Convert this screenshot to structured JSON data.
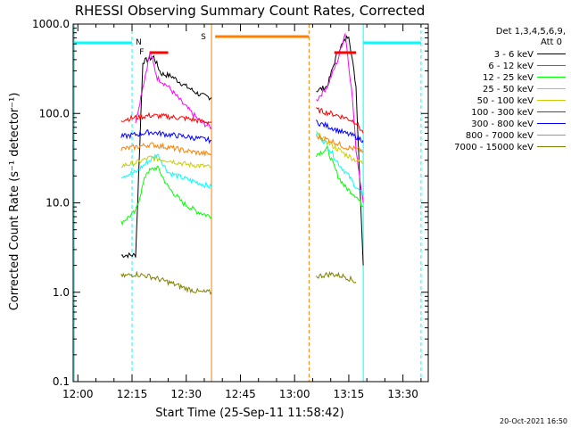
{
  "chart_data": {
    "type": "line",
    "title": "RHESSI Observing Summary Count Rates, Corrected",
    "xlabel": "Start Time (25-Sep-11 11:58:42)",
    "ylabel": "Corrected Count Rate (s⁻¹ detector⁻¹)",
    "y_scale": "log",
    "xlim": [
      "11:58:42",
      "13:37:00"
    ],
    "ylim": [
      0.1,
      1000
    ],
    "x_ticks": [
      "12:00",
      "12:15",
      "12:30",
      "12:45",
      "13:00",
      "13:15",
      "13:30"
    ],
    "y_ticks": [
      "0.1",
      "1.0",
      "10.0",
      "100.0",
      "1000.0"
    ],
    "legend": {
      "position": "top-right",
      "header_line1": "Det 1,3,4,5,6,9,",
      "header_line2": "Att 0"
    },
    "series": [
      {
        "name": "3 - 6 keV",
        "color": "#000000",
        "points": [
          [
            "12:12",
            2.6
          ],
          [
            "12:16",
            2.6
          ],
          [
            "12:18",
            380
          ],
          [
            "12:21",
            430
          ],
          [
            "12:23",
            280
          ],
          [
            "12:26",
            260
          ],
          [
            "12:30",
            200
          ],
          [
            "12:34",
            160
          ],
          [
            "12:37",
            150
          ],
          [
            "13:06",
            180
          ],
          [
            "13:09",
            200
          ],
          [
            "13:12",
            500
          ],
          [
            "13:15",
            760
          ],
          [
            "13:17",
            200
          ],
          [
            "13:19",
            2.0
          ]
        ]
      },
      {
        "name": "6 - 12 keV",
        "color": "#ff00ff",
        "points": [
          [
            "12:16",
            80
          ],
          [
            "12:18",
            200
          ],
          [
            "12:20",
            480
          ],
          [
            "12:22",
            250
          ],
          [
            "12:25",
            200
          ],
          [
            "12:29",
            130
          ],
          [
            "12:34",
            80
          ],
          [
            "12:37",
            70
          ],
          [
            "13:06",
            140
          ],
          [
            "13:09",
            200
          ],
          [
            "13:12",
            400
          ],
          [
            "13:14",
            800
          ],
          [
            "13:16",
            150
          ],
          [
            "13:17",
            40
          ],
          [
            "13:19",
            10
          ]
        ]
      },
      {
        "name": "12 - 25 keV",
        "color": "#00ff00",
        "points": [
          [
            "12:12",
            6
          ],
          [
            "12:16",
            8
          ],
          [
            "12:19",
            22
          ],
          [
            "12:22",
            25
          ],
          [
            "12:25",
            15
          ],
          [
            "12:29",
            10
          ],
          [
            "12:33",
            8
          ],
          [
            "12:37",
            7
          ],
          [
            "13:06",
            35
          ],
          [
            "13:09",
            40
          ],
          [
            "13:12",
            20
          ],
          [
            "13:14",
            15
          ],
          [
            "13:17",
            12
          ],
          [
            "13:19",
            9
          ]
        ]
      },
      {
        "name": "25 - 50 keV",
        "color": "#00ffff",
        "points": [
          [
            "12:12",
            20
          ],
          [
            "12:16",
            22
          ],
          [
            "12:19",
            28
          ],
          [
            "12:22",
            35
          ],
          [
            "12:25",
            22
          ],
          [
            "12:29",
            19
          ],
          [
            "12:33",
            17
          ],
          [
            "12:37",
            15
          ],
          [
            "13:06",
            60
          ],
          [
            "13:09",
            45
          ],
          [
            "13:12",
            28
          ],
          [
            "13:15",
            20
          ],
          [
            "13:17",
            15
          ],
          [
            "13:19",
            12
          ]
        ]
      },
      {
        "name": "50 - 100 keV",
        "color": "#cccc00",
        "points": [
          [
            "12:12",
            26
          ],
          [
            "12:16",
            28
          ],
          [
            "12:20",
            32
          ],
          [
            "12:25",
            30
          ],
          [
            "12:30",
            27
          ],
          [
            "12:34",
            26
          ],
          [
            "12:37",
            25
          ],
          [
            "13:06",
            60
          ],
          [
            "13:10",
            45
          ],
          [
            "13:14",
            35
          ],
          [
            "13:17",
            30
          ],
          [
            "13:19",
            28
          ]
        ]
      },
      {
        "name": "100 - 300 keV",
        "color": "#ff0000",
        "points": [
          [
            "12:12",
            85
          ],
          [
            "12:16",
            90
          ],
          [
            "12:20",
            95
          ],
          [
            "12:25",
            92
          ],
          [
            "12:30",
            88
          ],
          [
            "12:34",
            82
          ],
          [
            "12:37",
            80
          ],
          [
            "13:06",
            110
          ],
          [
            "13:10",
            100
          ],
          [
            "13:14",
            90
          ],
          [
            "13:17",
            80
          ],
          [
            "13:19",
            60
          ]
        ]
      },
      {
        "name": "300 - 800 keV",
        "color": "#0000ff",
        "points": [
          [
            "12:12",
            55
          ],
          [
            "12:16",
            58
          ],
          [
            "12:20",
            62
          ],
          [
            "12:25",
            58
          ],
          [
            "12:30",
            55
          ],
          [
            "12:34",
            52
          ],
          [
            "12:37",
            50
          ],
          [
            "13:06",
            80
          ],
          [
            "13:10",
            70
          ],
          [
            "13:14",
            60
          ],
          [
            "13:17",
            55
          ],
          [
            "13:19",
            50
          ]
        ]
      },
      {
        "name": "800 - 7000 keV",
        "color": "#ff8000",
        "points": [
          [
            "12:12",
            40
          ],
          [
            "12:16",
            42
          ],
          [
            "12:20",
            45
          ],
          [
            "12:25",
            42
          ],
          [
            "12:30",
            38
          ],
          [
            "12:34",
            36
          ],
          [
            "12:37",
            35
          ],
          [
            "13:06",
            55
          ],
          [
            "13:10",
            50
          ],
          [
            "13:14",
            42
          ],
          [
            "13:17",
            40
          ],
          [
            "13:19",
            38
          ]
        ]
      },
      {
        "name": "7000 - 15000 keV",
        "color": "#808000",
        "points": [
          [
            "12:12",
            1.5
          ],
          [
            "12:16",
            1.6
          ],
          [
            "12:20",
            1.5
          ],
          [
            "12:25",
            1.3
          ],
          [
            "12:30",
            1.1
          ],
          [
            "12:34",
            1.0
          ],
          [
            "12:37",
            1.0
          ],
          [
            "13:06",
            1.5
          ],
          [
            "13:10",
            1.6
          ],
          [
            "13:14",
            1.5
          ],
          [
            "13:17",
            1.3
          ]
        ]
      }
    ],
    "annotations": {
      "night_bars": [
        [
          "11:59",
          "12:15"
        ],
        [
          "13:19",
          "13:35"
        ]
      ],
      "night_bar_color": "#00ffff",
      "night_label": "N",
      "saa_bar": [
        "12:38",
        "13:04"
      ],
      "saa_bar_color": "#ff8000",
      "saa_label": "S",
      "flare_bars": [
        [
          "12:20",
          "12:25"
        ],
        [
          "13:11",
          "13:17"
        ]
      ],
      "flare_bar_color": "#ff0000",
      "flare_label": "F",
      "night_edges": [
        "11:59",
        "13:19"
      ],
      "day_edges": [
        "12:15",
        "13:35"
      ],
      "saa_edges": [
        "12:37",
        "13:04"
      ]
    },
    "timestamp": "20-Oct-2021 16:50"
  }
}
